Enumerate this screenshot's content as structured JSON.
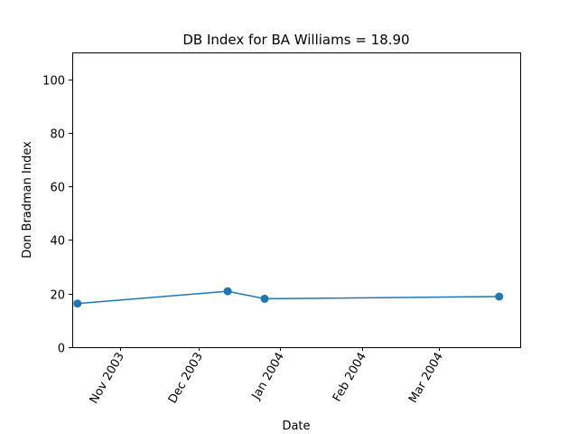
{
  "chart_data": {
    "type": "line",
    "title": "DB Index for BA Williams = 18.90",
    "xlabel": "Date",
    "ylabel": "Don Bradman Index",
    "x_tick_labels": [
      {
        "date": "2003-11-01",
        "label": "Nov 2003"
      },
      {
        "date": "2003-12-01",
        "label": "Dec 2003"
      },
      {
        "date": "2004-01-01",
        "label": "Jan 2004"
      },
      {
        "date": "2004-02-01",
        "label": "Feb 2004"
      },
      {
        "date": "2004-03-01",
        "label": "Mar 2004"
      }
    ],
    "y_ticks": [
      0,
      20,
      40,
      60,
      80,
      100
    ],
    "xlim": [
      "2003-10-14",
      "2004-04-01"
    ],
    "ylim": [
      0,
      110
    ],
    "grid": false,
    "series": [
      {
        "color": "#1f77b4",
        "points": [
          {
            "x": "2003-10-16",
            "y": 16.3
          },
          {
            "x": "2003-12-12",
            "y": 20.9
          },
          {
            "x": "2003-12-26",
            "y": 18.1
          },
          {
            "x": "2004-03-24",
            "y": 18.9
          }
        ]
      }
    ]
  }
}
